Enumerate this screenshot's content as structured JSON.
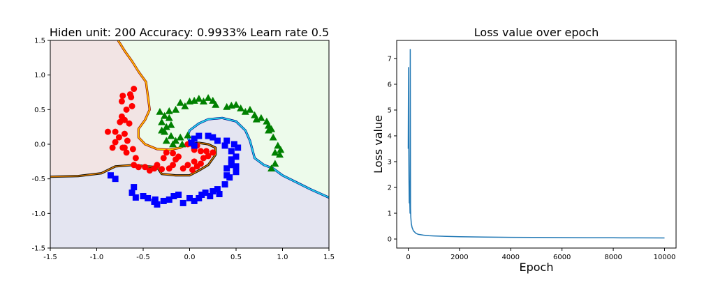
{
  "chart_data": [
    {
      "type": "scatter",
      "title": "Hiden unit: 200 Accuracy: 0.9933% Learn rate 0.5",
      "xlabel": "",
      "ylabel": "",
      "xlim": [
        -1.5,
        1.5
      ],
      "ylim": [
        -1.5,
        1.5
      ],
      "xticks": [
        "-1.5",
        "-1.0",
        "-0.5",
        "0.0",
        "0.5",
        "1.0",
        "1.5"
      ],
      "xtick_values": [
        -1.5,
        -1.0,
        -0.5,
        0.0,
        0.5,
        1.0,
        1.5
      ],
      "yticks": [
        "-1.5",
        "-1.0",
        "-0.5",
        "0.0",
        "0.5",
        "1.0",
        "1.5"
      ],
      "ytick_values": [
        -1.5,
        -1.0,
        -0.5,
        0.0,
        0.5,
        1.0,
        1.5
      ],
      "region_colors": {
        "red": "#f2e4e4",
        "green": "#edfbeb",
        "blue": "#e4e5f1"
      },
      "decision_boundaries": [
        {
          "separates": "red-green",
          "colors": [
            "#800000",
            "#ff8c00",
            "#ffd700"
          ],
          "points": [
            [
              -0.77,
              1.5
            ],
            [
              -0.7,
              1.35
            ],
            [
              -0.62,
              1.2
            ],
            [
              -0.55,
              1.05
            ],
            [
              -0.47,
              0.9
            ],
            [
              -0.45,
              0.7
            ],
            [
              -0.43,
              0.5
            ],
            [
              -0.48,
              0.35
            ],
            [
              -0.55,
              0.22
            ],
            [
              -0.55,
              0.1
            ],
            [
              -0.48,
              0.0
            ],
            [
              -0.35,
              -0.07
            ],
            [
              -0.22,
              -0.08
            ],
            [
              -0.1,
              -0.05
            ],
            [
              0.0,
              0.02
            ]
          ]
        },
        {
          "separates": "red-blue",
          "colors": [
            "#000000",
            "#5c3a00",
            "#ff8c00"
          ],
          "points": [
            [
              -1.5,
              -0.47
            ],
            [
              -1.2,
              -0.46
            ],
            [
              -0.95,
              -0.42
            ],
            [
              -0.8,
              -0.32
            ],
            [
              -0.6,
              -0.3
            ],
            [
              -0.45,
              -0.32
            ],
            [
              -0.35,
              -0.33
            ],
            [
              -0.3,
              -0.43
            ],
            [
              -0.15,
              -0.45
            ],
            [
              0.0,
              -0.45
            ],
            [
              0.1,
              -0.38
            ],
            [
              0.2,
              -0.3
            ],
            [
              0.28,
              -0.15
            ],
            [
              0.28,
              -0.05
            ],
            [
              0.2,
              0.0
            ],
            [
              0.1,
              0.02
            ],
            [
              0.0,
              0.0
            ]
          ]
        },
        {
          "separates": "green-blue",
          "colors": [
            "#000080",
            "#00bfff",
            "#40e0d0"
          ],
          "points": [
            [
              0.0,
              0.02
            ],
            [
              -0.02,
              0.12
            ],
            [
              0.0,
              0.2
            ],
            [
              0.1,
              0.3
            ],
            [
              0.2,
              0.36
            ],
            [
              0.35,
              0.38
            ],
            [
              0.5,
              0.33
            ],
            [
              0.6,
              0.2
            ],
            [
              0.65,
              0.05
            ],
            [
              0.7,
              -0.2
            ],
            [
              0.8,
              -0.3
            ],
            [
              0.9,
              -0.35
            ],
            [
              1.0,
              -0.45
            ],
            [
              1.15,
              -0.55
            ],
            [
              1.3,
              -0.65
            ],
            [
              1.5,
              -0.77
            ]
          ]
        }
      ],
      "series": [
        {
          "name": "",
          "marker": "circle",
          "color": "#ff0000",
          "points": [
            [
              -0.62,
              0.55
            ],
            [
              -0.68,
              0.5
            ],
            [
              -0.73,
              0.62
            ],
            [
              -0.63,
              0.68
            ],
            [
              -0.6,
              0.8
            ],
            [
              -0.64,
              0.72
            ],
            [
              -0.72,
              0.7
            ],
            [
              -0.73,
              0.4
            ],
            [
              -0.7,
              0.35
            ],
            [
              -0.65,
              0.3
            ],
            [
              -0.75,
              0.32
            ],
            [
              -0.8,
              0.18
            ],
            [
              -0.88,
              0.18
            ],
            [
              -0.7,
              0.15
            ],
            [
              -0.76,
              0.1
            ],
            [
              -0.8,
              0.03
            ],
            [
              -0.67,
              0.05
            ],
            [
              -0.7,
              -0.05
            ],
            [
              -0.68,
              -0.12
            ],
            [
              -0.72,
              -0.05
            ],
            [
              -0.83,
              -0.05
            ],
            [
              -0.61,
              -0.07
            ],
            [
              -0.58,
              -0.2
            ],
            [
              -0.6,
              -0.3
            ],
            [
              -0.55,
              -0.33
            ],
            [
              -0.48,
              -0.33
            ],
            [
              -0.43,
              -0.38
            ],
            [
              -0.38,
              -0.35
            ],
            [
              -0.35,
              -0.3
            ],
            [
              -0.3,
              -0.36
            ],
            [
              -0.22,
              -0.35
            ],
            [
              -0.18,
              -0.3
            ],
            [
              -0.15,
              -0.22
            ],
            [
              -0.12,
              -0.18
            ],
            [
              -0.18,
              -0.13
            ],
            [
              -0.25,
              -0.12
            ],
            [
              -0.28,
              -0.2
            ],
            [
              -0.07,
              -0.35
            ],
            [
              -0.02,
              -0.3
            ],
            [
              0.03,
              -0.37
            ],
            [
              0.05,
              -0.25
            ],
            [
              0.08,
              -0.32
            ],
            [
              0.12,
              -0.28
            ],
            [
              0.15,
              -0.2
            ],
            [
              0.2,
              -0.17
            ],
            [
              0.25,
              -0.12
            ],
            [
              0.18,
              -0.1
            ],
            [
              0.12,
              -0.1
            ],
            [
              0.05,
              -0.08
            ],
            [
              0.08,
              -0.02
            ],
            [
              0.03,
              0.0
            ],
            [
              -0.02,
              0.0
            ]
          ]
        },
        {
          "name": "",
          "marker": "triangle",
          "color": "#008000",
          "points": [
            [
              -0.1,
              0.6
            ],
            [
              -0.05,
              0.55
            ],
            [
              0.0,
              0.62
            ],
            [
              0.05,
              0.63
            ],
            [
              0.1,
              0.66
            ],
            [
              0.15,
              0.62
            ],
            [
              0.2,
              0.67
            ],
            [
              0.25,
              0.63
            ],
            [
              0.28,
              0.57
            ],
            [
              -0.15,
              0.5
            ],
            [
              -0.22,
              0.48
            ],
            [
              -0.27,
              0.41
            ],
            [
              -0.22,
              0.38
            ],
            [
              -0.25,
              0.25
            ],
            [
              -0.2,
              0.28
            ],
            [
              -0.3,
              0.2
            ],
            [
              -0.27,
              0.18
            ],
            [
              -0.2,
              0.12
            ],
            [
              -0.15,
              0.05
            ],
            [
              -0.25,
              0.05
            ],
            [
              -0.18,
              0.0
            ],
            [
              -0.08,
              0.0
            ],
            [
              -0.1,
              0.1
            ],
            [
              -0.02,
              0.13
            ],
            [
              -0.32,
              0.47
            ],
            [
              -0.3,
              0.32
            ],
            [
              0.45,
              0.56
            ],
            [
              0.5,
              0.57
            ],
            [
              0.4,
              0.54
            ],
            [
              0.55,
              0.52
            ],
            [
              0.6,
              0.47
            ],
            [
              0.65,
              0.5
            ],
            [
              0.7,
              0.42
            ],
            [
              0.72,
              0.36
            ],
            [
              0.77,
              0.38
            ],
            [
              0.83,
              0.33
            ],
            [
              0.85,
              0.27
            ],
            [
              0.88,
              0.22
            ],
            [
              0.85,
              0.2
            ],
            [
              0.9,
              0.1
            ],
            [
              0.95,
              -0.02
            ],
            [
              0.98,
              -0.08
            ],
            [
              0.92,
              -0.12
            ],
            [
              0.97,
              -0.15
            ],
            [
              0.92,
              -0.28
            ],
            [
              0.88,
              -0.35
            ]
          ]
        },
        {
          "name": "",
          "marker": "square",
          "color": "#0000ff",
          "points": [
            [
              -0.6,
              -0.62
            ],
            [
              -0.62,
              -0.7
            ],
            [
              -0.58,
              -0.77
            ],
            [
              -0.5,
              -0.75
            ],
            [
              -0.45,
              -0.78
            ],
            [
              -0.37,
              -0.8
            ],
            [
              -0.35,
              -0.87
            ],
            [
              -0.38,
              -0.83
            ],
            [
              -0.28,
              -0.82
            ],
            [
              -0.22,
              -0.8
            ],
            [
              -0.17,
              -0.75
            ],
            [
              -0.12,
              -0.73
            ],
            [
              -0.07,
              -0.85
            ],
            [
              0.0,
              -0.78
            ],
            [
              0.05,
              -0.82
            ],
            [
              0.1,
              -0.78
            ],
            [
              0.13,
              -0.73
            ],
            [
              0.17,
              -0.7
            ],
            [
              0.22,
              -0.75
            ],
            [
              0.25,
              -0.68
            ],
            [
              0.32,
              -0.72
            ],
            [
              0.3,
              -0.65
            ],
            [
              0.38,
              -0.58
            ],
            [
              0.4,
              -0.45
            ],
            [
              0.43,
              -0.48
            ],
            [
              0.4,
              -0.35
            ],
            [
              0.45,
              -0.3
            ],
            [
              0.5,
              -0.32
            ],
            [
              0.45,
              -0.22
            ],
            [
              0.5,
              -0.18
            ],
            [
              0.45,
              -0.1
            ],
            [
              0.52,
              -0.05
            ],
            [
              0.48,
              0.0
            ],
            [
              0.4,
              0.05
            ],
            [
              0.38,
              -0.02
            ],
            [
              0.3,
              0.05
            ],
            [
              0.25,
              0.1
            ],
            [
              0.2,
              0.12
            ],
            [
              0.1,
              0.12
            ],
            [
              0.05,
              0.08
            ],
            [
              0.02,
              0.02
            ],
            [
              0.05,
              -0.02
            ],
            [
              0.45,
              -0.25
            ],
            [
              0.5,
              -0.4
            ],
            [
              -0.85,
              -0.45
            ],
            [
              -0.8,
              -0.5
            ]
          ]
        }
      ]
    },
    {
      "type": "line",
      "title": "Loss value over epoch",
      "xlabel": "Epoch",
      "ylabel": "Loss value",
      "xlim": [
        -450,
        10450
      ],
      "ylim": [
        -0.35,
        7.7
      ],
      "xticks": [
        "0",
        "2000",
        "4000",
        "6000",
        "8000",
        "10000"
      ],
      "xtick_values": [
        0,
        2000,
        4000,
        6000,
        8000,
        10000
      ],
      "yticks": [
        "0",
        "1",
        "2",
        "3",
        "4",
        "5",
        "6",
        "7"
      ],
      "ytick_values": [
        0,
        1,
        2,
        3,
        4,
        5,
        6,
        7
      ],
      "line_color": "#1f77b4",
      "series": [
        {
          "name": "",
          "x": [
            0,
            10,
            20,
            30,
            40,
            50,
            60,
            70,
            80,
            90,
            100,
            120,
            150,
            200,
            300,
            400,
            600,
            800,
            1000,
            1500,
            2000,
            3000,
            4000,
            5000,
            6000,
            7000,
            8000,
            9000,
            10000
          ],
          "y": [
            3.5,
            6.65,
            4.0,
            2.3,
            1.4,
            2.25,
            1.5,
            1.0,
            7.35,
            1.2,
            0.85,
            0.6,
            0.45,
            0.32,
            0.22,
            0.18,
            0.15,
            0.13,
            0.12,
            0.1,
            0.09,
            0.075,
            0.065,
            0.06,
            0.055,
            0.05,
            0.047,
            0.045,
            0.043
          ]
        }
      ]
    }
  ]
}
